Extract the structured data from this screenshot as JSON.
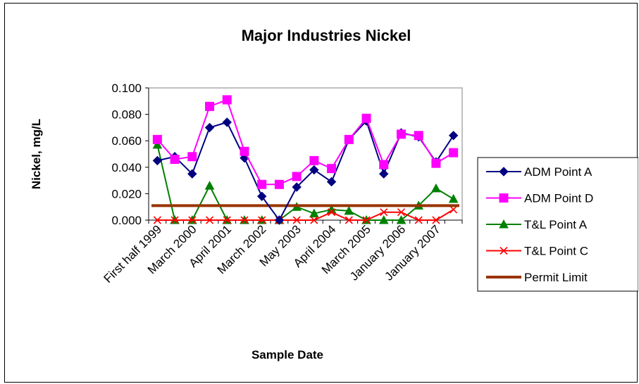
{
  "chart_data": {
    "type": "line",
    "title": "Major Industries Nickel",
    "xlabel": "Sample Date",
    "ylabel": "Nickel, mg/L",
    "ylim": [
      0,
      0.1
    ],
    "ytick_labels": [
      "0.000",
      "0.020",
      "0.040",
      "0.060",
      "0.080",
      "0.100"
    ],
    "x_tick_labels": [
      "First half 1999",
      "March 2000",
      "April 2001",
      "March 2002",
      "May 2003",
      "April 2004",
      "March 2005",
      "January 2006",
      "January 2007"
    ],
    "legend_position": "right",
    "series": [
      {
        "name": "ADM Point A",
        "color": "#000080",
        "marker": "diamond",
        "values": [
          0.045,
          0.048,
          0.035,
          0.07,
          0.074,
          0.047,
          0.018,
          0.0,
          0.025,
          0.038,
          0.029,
          0.061,
          0.075,
          0.035,
          0.066,
          0.063,
          0.044,
          0.064
        ]
      },
      {
        "name": "ADM Point D",
        "color": "#FF00FF",
        "marker": "square",
        "values": [
          0.061,
          0.046,
          0.048,
          0.086,
          0.091,
          0.052,
          0.027,
          0.027,
          0.033,
          0.045,
          0.039,
          0.061,
          0.077,
          0.042,
          0.065,
          0.064,
          0.043,
          0.051
        ]
      },
      {
        "name": "T&L Point A",
        "color": "#008000",
        "marker": "triangle",
        "values": [
          0.057,
          0.0,
          0.0,
          0.026,
          0.0,
          0.0,
          0.0,
          0.0,
          0.01,
          0.005,
          0.008,
          0.007,
          0.0,
          0.0,
          0.0,
          0.011,
          0.024,
          0.016
        ]
      },
      {
        "name": "T&L Point C",
        "color": "#FF0000",
        "marker": "x",
        "values": [
          0.0,
          0.0,
          0.0,
          0.0,
          0.0,
          0.0,
          0.0,
          0.0,
          0.0,
          0.0,
          0.006,
          0.0,
          0.0,
          0.006,
          0.006,
          0.0,
          0.0,
          0.008
        ]
      },
      {
        "name": "Permit Limit",
        "color": "#993300",
        "marker": "none",
        "values": [
          0.011,
          0.011,
          0.011,
          0.011,
          0.011,
          0.011,
          0.011,
          0.011,
          0.011,
          0.011,
          0.011,
          0.011,
          0.011,
          0.011,
          0.011,
          0.011,
          0.011,
          0.011
        ]
      }
    ]
  }
}
